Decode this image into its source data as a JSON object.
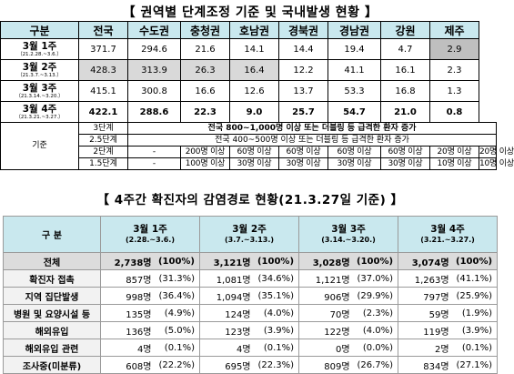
{
  "title1": "【 권역별 단계조정 기준 및 국내발생 현황 】",
  "title2": "【 4주간 확진자의 감염경로 현황(21.3.27일 기준) 】",
  "region_table": {
    "corner": "구분",
    "regions": [
      "전국",
      "수도권",
      "충청권",
      "호남권",
      "경북권",
      "경남권",
      "강원",
      "제주"
    ],
    "weeks": [
      {
        "label": "3월 1주",
        "dates": "（21.2.28.~3.6.）",
        "values": [
          "371.7",
          "294.6",
          "21.6",
          "14.1",
          "14.4",
          "19.4",
          "4.7",
          "2.9"
        ]
      },
      {
        "label": "3월 2주",
        "dates": "（21.3.7.~3.13.）",
        "values": [
          "428.3",
          "313.9",
          "26.3",
          "16.4",
          "12.2",
          "41.1",
          "16.1",
          "2.3"
        ]
      },
      {
        "label": "3월 3주",
        "dates": "（21.3.14.~3.20.）",
        "values": [
          "415.1",
          "300.8",
          "16.6",
          "12.6",
          "13.7",
          "53.3",
          "16.8",
          "1.3"
        ]
      },
      {
        "label": "3월 4주",
        "dates": "（21.3.21.~3.27.）",
        "values": [
          "422.1",
          "288.6",
          "22.3",
          "9.0",
          "25.7",
          "54.7",
          "21.0",
          "0.8"
        ]
      }
    ],
    "criteria_label": "기준",
    "level3": {
      "label": "3단계",
      "text": "전국 800~1,000명 이상 또는 더블링 등 급격한 환자 증가"
    },
    "level25": {
      "label": "2.5단계",
      "text": "전국 400~500명 이상 또는 더블링 등 급격한 환자 증가"
    },
    "level2": {
      "label": "2단계",
      "values": [
        "-",
        "200명 이상",
        "60명 이상",
        "60명 이상",
        "60명 이상",
        "60명 이상",
        "20명 이상",
        "20명 이상"
      ]
    },
    "level15": {
      "label": "1.5단계",
      "values": [
        "-",
        "100명 이상",
        "30명 이상",
        "30명 이상",
        "30명 이상",
        "30명 이상",
        "10명 이상",
        "10명 이상"
      ]
    }
  },
  "route_table": {
    "corner": "구 분",
    "weeks": [
      {
        "label": "3월 1주",
        "dates": "(2.28.~3.6.)"
      },
      {
        "label": "3월 2주",
        "dates": "(3.7.~3.13.)"
      },
      {
        "label": "3월 3주",
        "dates": "(3.14.~3.20.)"
      },
      {
        "label": "3월 4주",
        "dates": "(3.21.~3.27.)"
      }
    ],
    "rows": [
      {
        "category": "전체",
        "cells": [
          [
            "2,738명",
            "(100%)"
          ],
          [
            "3,121명",
            "(100%)"
          ],
          [
            "3,028명",
            "(100%)"
          ],
          [
            "3,074명",
            "(100%)"
          ]
        ]
      },
      {
        "category": "확진자 접촉",
        "cells": [
          [
            "857명",
            "(31.3%)"
          ],
          [
            "1,081명",
            "(34.6%)"
          ],
          [
            "1,121명",
            "(37.0%)"
          ],
          [
            "1,263명",
            "(41.1%)"
          ]
        ]
      },
      {
        "category": "지역 집단발생",
        "cells": [
          [
            "998명",
            "(36.4%)"
          ],
          [
            "1,094명",
            "(35.1%)"
          ],
          [
            "906명",
            "(29.9%)"
          ],
          [
            "797명",
            "(25.9%)"
          ]
        ]
      },
      {
        "category": "병원 및 요양시설 등",
        "cells": [
          [
            "135명",
            "(4.9%)"
          ],
          [
            "124명",
            "(4.0%)"
          ],
          [
            "70명",
            "(2.3%)"
          ],
          [
            "59명",
            "(1.9%)"
          ]
        ]
      },
      {
        "category": "해외유입",
        "cells": [
          [
            "136명",
            "(5.0%)"
          ],
          [
            "123명",
            "(3.9%)"
          ],
          [
            "122명",
            "(4.0%)"
          ],
          [
            "119명",
            "(3.9%)"
          ]
        ]
      },
      {
        "category": "해외유입 관련",
        "cells": [
          [
            "4명",
            "(0.1%)"
          ],
          [
            "4명",
            "(0.1%)"
          ],
          [
            "0명",
            "(0.0%)"
          ],
          [
            "2명",
            "(0.1%)"
          ]
        ]
      },
      {
        "category": "조사중(미분류)",
        "cells": [
          [
            "608명",
            "(22.2%)"
          ],
          [
            "695명",
            "(22.3%)"
          ],
          [
            "809명",
            "(26.7%)"
          ],
          [
            "834명",
            "(27.1%)"
          ]
        ]
      }
    ]
  }
}
